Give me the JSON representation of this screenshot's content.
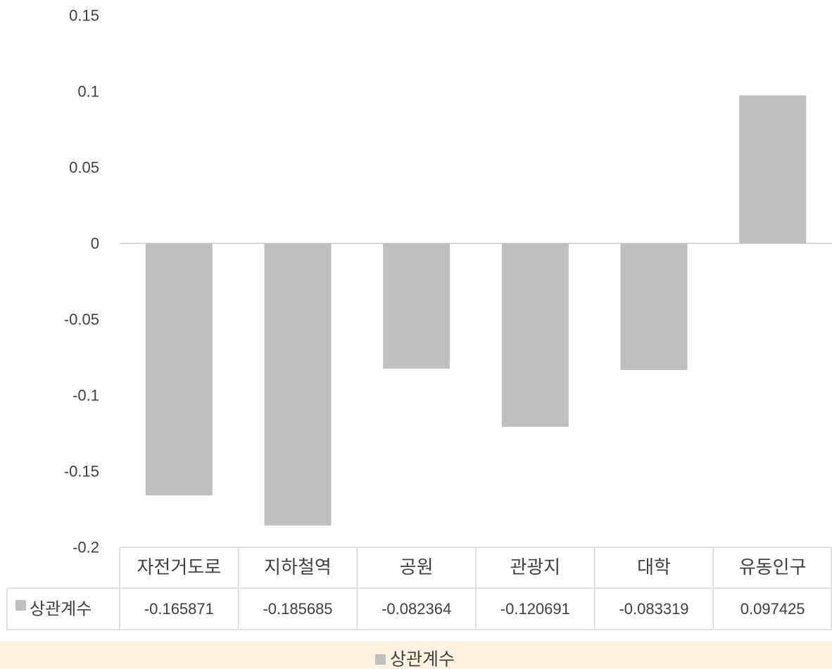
{
  "chart_data": {
    "type": "bar",
    "categories": [
      "자전거도로",
      "지하철역",
      "공원",
      "관광지",
      "대학",
      "유동인구"
    ],
    "series": [
      {
        "name": "상관계수",
        "values": [
          -0.165871,
          -0.185685,
          -0.082364,
          -0.120691,
          -0.083319,
          0.097425
        ],
        "value_labels": [
          "-0.165871",
          "-0.185685",
          "-0.082364",
          "-0.120691",
          "-0.083319",
          "0.097425"
        ],
        "color": "#bfbfbf"
      }
    ],
    "y_ticks": [
      "0.15",
      "0.1",
      "0.05",
      "0",
      "-0.05",
      "-0.1",
      "-0.15",
      "-0.2"
    ],
    "ylim": [
      -0.2,
      0.15
    ],
    "title": "",
    "xlabel": "",
    "ylabel": "",
    "grid": false,
    "data_table": true,
    "legend": {
      "position": "bottom",
      "label": "상관계수",
      "background": "#fdf3e0"
    },
    "colors": {
      "bar": "#bfbfbf",
      "axis": "#d9d9d9",
      "text": "#404040"
    }
  }
}
